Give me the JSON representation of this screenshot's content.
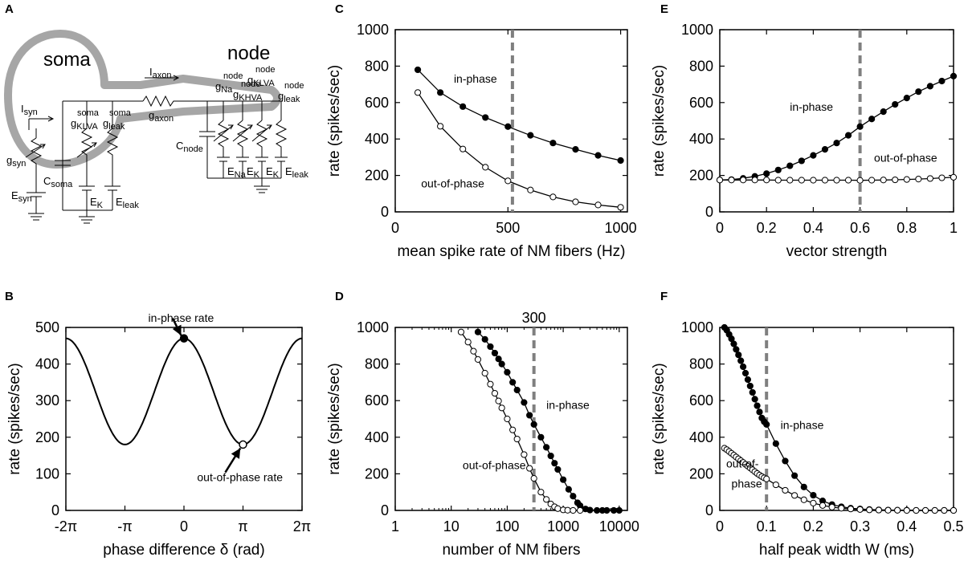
{
  "colors": {
    "curve": "#000000",
    "guide": "#7f7f7f",
    "neuron": "#a6a6a6"
  },
  "panel_A": {
    "letter": "A",
    "soma_label": "soma",
    "node_label": "node",
    "labels": {
      "i_axon": "I",
      "i_axon_sub": "axon",
      "g_axon": "g",
      "g_axon_sub": "axon",
      "i_syn": "I",
      "i_syn_sub": "syn",
      "g_syn": "g",
      "g_syn_sub": "syn",
      "e_syn": "E",
      "e_syn_sub": "syn",
      "c_soma": "C",
      "c_soma_sub": "soma",
      "g_klva_soma": "g",
      "g_klva_soma_sub": "KLVA",
      "g_klva_soma_sup": "soma",
      "g_leak_soma": "g",
      "g_leak_soma_sub": "leak",
      "g_leak_soma_sup": "soma",
      "e_k_soma": "E",
      "e_k_soma_sub": "K",
      "e_leak_soma": "E",
      "e_leak_soma_sub": "leak",
      "c_node": "C",
      "c_node_sub": "node",
      "g_na_node": "g",
      "g_na_node_sub": "Na",
      "g_na_node_sup": "node",
      "g_khva_node": "g",
      "g_khva_node_sub": "KHVA",
      "g_khva_node_sup": "node",
      "g_klva_node": "g",
      "g_klva_node_sub": "KLVA",
      "g_klva_node_sup": "node",
      "g_leak_node": "g",
      "g_leak_node_sub": "leak",
      "g_leak_node_sup": "node",
      "e_na_node": "E",
      "e_na_node_sub": "Na",
      "e_k1_node": "E",
      "e_k1_node_sub": "K",
      "e_k2_node": "E",
      "e_k2_node_sub": "K",
      "e_leak_node": "E",
      "e_leak_node_sub": "leak"
    }
  },
  "chart_data": [
    {
      "id": "B",
      "letter": "B",
      "type": "line",
      "xlabel": "phase difference δ (rad)",
      "ylabel": "rate (spikes/sec)",
      "xlim": [
        -6.2832,
        6.2832
      ],
      "ylim": [
        0,
        500
      ],
      "xticks": [
        -6.2832,
        -3.1416,
        0,
        3.1416,
        6.2832
      ],
      "xtick_labels": [
        "-2π",
        "-π",
        "0",
        "π",
        "2π"
      ],
      "yticks": [
        0,
        100,
        200,
        300,
        400,
        500
      ],
      "ytick_labels": [
        "0",
        "100",
        "200",
        "300",
        "400",
        "500"
      ],
      "curve": {
        "min": 180,
        "max": 470,
        "period_rad": 6.2832,
        "peak_at_rad": 0
      },
      "markers": [
        {
          "x": 0,
          "y": 470,
          "filled": true,
          "name": "in-phase-rate-marker"
        },
        {
          "x": 3.1416,
          "y": 180,
          "filled": false,
          "name": "out-of-phase-rate-marker"
        }
      ],
      "annotations": [
        {
          "text": "in-phase rate",
          "x": -1.9,
          "y": 515,
          "arrow_to": [
            -0.15,
            478
          ],
          "arrow_from": [
            -0.6,
            525
          ]
        },
        {
          "text": "out-of-phase rate",
          "x": 0.7,
          "y": 80,
          "arrow_to": [
            3.0,
            170
          ],
          "arrow_from": [
            2.2,
            104
          ]
        }
      ]
    },
    {
      "id": "C",
      "letter": "C",
      "type": "line",
      "xlabel": "mean spike rate of NM fibers (Hz)",
      "ylabel": "rate (spikes/sec)",
      "xlim": [
        0,
        1030
      ],
      "ylim": [
        0,
        1000
      ],
      "xticks": [
        0,
        500,
        1000
      ],
      "xtick_labels": [
        "0",
        "500",
        "1000"
      ],
      "yticks": [
        0,
        200,
        400,
        600,
        800,
        1000
      ],
      "ytick_labels": [
        "0",
        "200",
        "400",
        "600",
        "800",
        "1000"
      ],
      "vline": 520,
      "series": [
        {
          "name": "in-phase",
          "filled": true,
          "x": [
            100,
            200,
            300,
            400,
            500,
            600,
            700,
            800,
            900,
            1000
          ],
          "y": [
            780,
            655,
            578,
            518,
            468,
            420,
            378,
            343,
            310,
            282
          ]
        },
        {
          "name": "out-of-phase",
          "filled": false,
          "x": [
            100,
            200,
            300,
            400,
            500,
            600,
            700,
            800,
            900,
            1000
          ],
          "y": [
            655,
            470,
            345,
            245,
            170,
            120,
            82,
            55,
            38,
            25
          ]
        }
      ],
      "labels": [
        {
          "text": "in-phase",
          "x": 260,
          "y": 710
        },
        {
          "text": "out-of-phase",
          "x": 115,
          "y": 135
        }
      ]
    },
    {
      "id": "D",
      "letter": "D",
      "type": "line",
      "xscale": "log",
      "xlabel": "number of NM fibers",
      "ylabel": "rate (spikes/sec)",
      "xlim": [
        1,
        14000
      ],
      "ylim": [
        0,
        1000
      ],
      "xticks": [
        1,
        10,
        100,
        1000,
        10000
      ],
      "xtick_labels": [
        "1",
        "10",
        "100",
        "1000",
        "10000"
      ],
      "yticks": [
        0,
        200,
        400,
        600,
        800,
        1000
      ],
      "ytick_labels": [
        "0",
        "200",
        "400",
        "600",
        "800",
        "1000"
      ],
      "vline": 300,
      "vline_label": "300",
      "series": [
        {
          "name": "in-phase",
          "filled": true,
          "x": [
            30,
            40,
            50,
            60,
            70,
            80,
            100,
            125,
            150,
            200,
            250,
            300,
            400,
            500,
            600,
            700,
            800,
            1000,
            1250,
            1500,
            1800,
            2000,
            2500,
            3000,
            4000,
            5000,
            6000,
            8000,
            10000
          ],
          "y": [
            975,
            935,
            895,
            860,
            828,
            800,
            755,
            700,
            658,
            590,
            520,
            470,
            400,
            345,
            298,
            258,
            224,
            168,
            115,
            78,
            42,
            26,
            8,
            2,
            0,
            0,
            0,
            0,
            0
          ]
        },
        {
          "name": "out-of-phase",
          "filled": false,
          "x": [
            15,
            20,
            25,
            30,
            40,
            50,
            60,
            70,
            80,
            100,
            125,
            150,
            200,
            250,
            300,
            400,
            500,
            600,
            700,
            800,
            1000,
            1200,
            1500,
            2000
          ],
          "y": [
            975,
            920,
            870,
            825,
            750,
            690,
            640,
            598,
            560,
            500,
            440,
            390,
            305,
            230,
            175,
            100,
            60,
            35,
            20,
            10,
            3,
            1,
            0,
            0
          ]
        }
      ],
      "labels": [
        {
          "text": "in-phase",
          "x": 500,
          "y": 555
        },
        {
          "text": "out-of-phase",
          "x": 16,
          "y": 225
        }
      ]
    },
    {
      "id": "E",
      "letter": "E",
      "type": "line",
      "xlabel": "vector strength",
      "ylabel": "rate (spikes/sec)",
      "xlim": [
        0,
        1
      ],
      "ylim": [
        0,
        1000
      ],
      "xticks": [
        0,
        0.2,
        0.4,
        0.6,
        0.8,
        1
      ],
      "xtick_labels": [
        "0",
        "0.2",
        "0.4",
        "0.6",
        "0.8",
        "1"
      ],
      "yticks": [
        0,
        200,
        400,
        600,
        800,
        1000
      ],
      "ytick_labels": [
        "0",
        "200",
        "400",
        "600",
        "800",
        "1000"
      ],
      "vline": 0.6,
      "series": [
        {
          "name": "in-phase",
          "filled": true,
          "x": [
            0,
            0.05,
            0.1,
            0.15,
            0.2,
            0.25,
            0.3,
            0.35,
            0.4,
            0.45,
            0.5,
            0.55,
            0.6,
            0.65,
            0.7,
            0.75,
            0.8,
            0.85,
            0.9,
            0.95,
            1
          ],
          "y": [
            175,
            177,
            184,
            195,
            210,
            230,
            253,
            280,
            310,
            343,
            378,
            420,
            468,
            510,
            550,
            590,
            625,
            660,
            690,
            718,
            745
          ]
        },
        {
          "name": "out-of-phase",
          "filled": false,
          "x": [
            0,
            0.05,
            0.1,
            0.15,
            0.2,
            0.25,
            0.3,
            0.35,
            0.4,
            0.45,
            0.5,
            0.55,
            0.6,
            0.65,
            0.7,
            0.75,
            0.8,
            0.85,
            0.9,
            0.95,
            1
          ],
          "y": [
            175,
            175,
            175,
            175,
            175,
            174,
            174,
            174,
            174,
            174,
            174,
            174,
            173,
            174,
            175,
            176,
            178,
            180,
            183,
            187,
            190
          ]
        }
      ],
      "labels": [
        {
          "text": "in-phase",
          "x": 0.3,
          "y": 555
        },
        {
          "text": "out-of-phase",
          "x": 0.66,
          "y": 275
        }
      ]
    },
    {
      "id": "F",
      "letter": "F",
      "type": "line",
      "xlabel": "half peak width W (ms)",
      "ylabel": "rate (spikes/sec)",
      "xlim": [
        0,
        0.5
      ],
      "ylim": [
        0,
        1000
      ],
      "xticks": [
        0,
        0.1,
        0.2,
        0.3,
        0.4,
        0.5
      ],
      "xtick_labels": [
        "0",
        "0.1",
        "0.2",
        "0.3",
        "0.4",
        "0.5"
      ],
      "yticks": [
        0,
        200,
        400,
        600,
        800,
        1000
      ],
      "ytick_labels": [
        "0",
        "200",
        "400",
        "600",
        "800",
        "1000"
      ],
      "vline": 0.1,
      "series": [
        {
          "name": "in-phase",
          "filled": true,
          "x": [
            0.01,
            0.015,
            0.02,
            0.025,
            0.03,
            0.035,
            0.04,
            0.045,
            0.05,
            0.055,
            0.06,
            0.065,
            0.07,
            0.075,
            0.08,
            0.085,
            0.09,
            0.095,
            0.1,
            0.12,
            0.14,
            0.16,
            0.18,
            0.2,
            0.22,
            0.24,
            0.26,
            0.28,
            0.3,
            0.32,
            0.34,
            0.36,
            0.38,
            0.4,
            0.42,
            0.44,
            0.46,
            0.48,
            0.5
          ],
          "y": [
            1000,
            985,
            962,
            938,
            910,
            880,
            850,
            818,
            785,
            750,
            715,
            680,
            645,
            608,
            572,
            538,
            505,
            485,
            470,
            365,
            270,
            190,
            128,
            83,
            52,
            32,
            20,
            12,
            8,
            5,
            3,
            2,
            1,
            1,
            0,
            0,
            0,
            0,
            0
          ]
        },
        {
          "name": "out-of-phase",
          "filled": false,
          "x": [
            0.01,
            0.015,
            0.02,
            0.025,
            0.03,
            0.035,
            0.04,
            0.045,
            0.05,
            0.055,
            0.06,
            0.065,
            0.07,
            0.075,
            0.08,
            0.085,
            0.09,
            0.095,
            0.1,
            0.12,
            0.14,
            0.16,
            0.18,
            0.2,
            0.22,
            0.24,
            0.26,
            0.28,
            0.3,
            0.32,
            0.34,
            0.36,
            0.38,
            0.4,
            0.42,
            0.44,
            0.46,
            0.48,
            0.5
          ],
          "y": [
            340,
            332,
            322,
            312,
            302,
            292,
            282,
            272,
            262,
            252,
            242,
            232,
            222,
            212,
            202,
            193,
            185,
            178,
            172,
            140,
            110,
            82,
            58,
            40,
            27,
            18,
            12,
            8,
            5,
            3,
            2,
            1,
            1,
            0,
            0,
            0,
            0,
            0,
            0
          ]
        }
      ],
      "labels": [
        {
          "text": "in-phase",
          "x": 0.13,
          "y": 445
        },
        {
          "text": "out-of-",
          "x": 0.0,
          "y": 235
        },
        {
          "text": "phase",
          "x": 0.025,
          "y": 125
        }
      ]
    }
  ]
}
